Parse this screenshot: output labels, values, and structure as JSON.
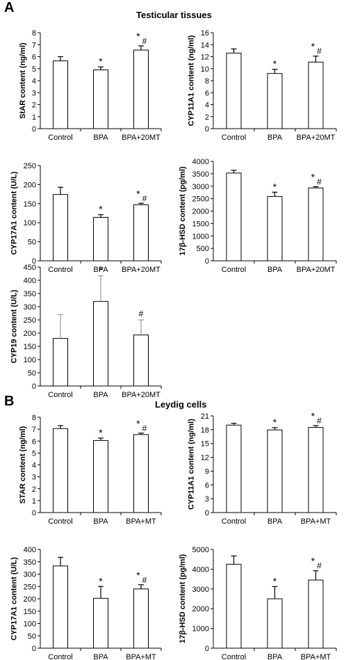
{
  "figure": {
    "panel_a_letter": "A",
    "panel_b_letter": "B",
    "panel_a_title": "Testicular tissues",
    "panel_b_title": "Leydig cells"
  },
  "chart_data": [
    {
      "type": "bar",
      "panel": "A",
      "categories": [
        "Control",
        "BPA",
        "BPA+20MT"
      ],
      "values": [
        5.65,
        4.9,
        6.55
      ],
      "errors": [
        0.35,
        0.25,
        0.35
      ],
      "annotations": [
        [],
        [
          "*"
        ],
        [
          "*",
          "#"
        ]
      ],
      "ylabel": "StAR content (ng/ml)",
      "ylim": [
        0,
        8
      ],
      "yticks": [
        0,
        1,
        2,
        3,
        4,
        5,
        6,
        7,
        8
      ],
      "error_style": "solid"
    },
    {
      "type": "bar",
      "panel": "A",
      "categories": [
        "Control",
        "BPA",
        "BPA+20MT"
      ],
      "values": [
        12.6,
        9.2,
        11.1
      ],
      "errors": [
        0.7,
        0.7,
        1.0
      ],
      "annotations": [
        [],
        [
          "*"
        ],
        [
          "*",
          "#"
        ]
      ],
      "ylabel": "CYP11A1 content (ng/ml)",
      "ylim": [
        0,
        16
      ],
      "yticks": [
        0,
        2,
        4,
        6,
        8,
        10,
        12,
        14,
        16
      ],
      "error_style": "solid"
    },
    {
      "type": "bar",
      "panel": "A",
      "categories": [
        "Control",
        "BPA",
        "BPA+20MT"
      ],
      "values": [
        174,
        114,
        147
      ],
      "errors": [
        19,
        7,
        4
      ],
      "annotations": [
        [],
        [
          "*"
        ],
        [
          "*",
          "#"
        ]
      ],
      "ylabel": "CYP17A1 content (U/L)",
      "ylim": [
        0,
        250
      ],
      "yticks": [
        0,
        50,
        100,
        150,
        200,
        250
      ],
      "error_style": "solid"
    },
    {
      "type": "bar",
      "panel": "A",
      "categories": [
        "Control",
        "BPA",
        "BPA+20MT"
      ],
      "values": [
        3530,
        2590,
        2930
      ],
      "errors": [
        110,
        170,
        50
      ],
      "annotations": [
        [],
        [
          "*"
        ],
        [
          "*",
          "#"
        ]
      ],
      "ylabel": "17β-HSD content (pg/ml)",
      "ylim": [
        0,
        4000
      ],
      "yticks": [
        0,
        500,
        1000,
        1500,
        2000,
        2500,
        3000,
        3500,
        4000
      ],
      "error_style": "solid"
    },
    {
      "type": "bar",
      "panel": "A",
      "categories": [
        "Control",
        "BPA",
        "BPA+20MT"
      ],
      "values": [
        180,
        320,
        193
      ],
      "errors": [
        90,
        97,
        57
      ],
      "annotations": [
        [],
        [
          "*"
        ],
        [
          "#"
        ]
      ],
      "ylabel": "CYP19 content (U/L)",
      "ylim": [
        0,
        450
      ],
      "yticks": [
        0,
        50,
        100,
        150,
        200,
        250,
        300,
        350,
        400,
        450
      ],
      "error_style": "light"
    },
    {
      "type": "bar",
      "panel": "B",
      "categories": [
        "Control",
        "BPA",
        "BPA+MT"
      ],
      "values": [
        7.05,
        6.05,
        6.55
      ],
      "errors": [
        0.25,
        0.2,
        0.12
      ],
      "annotations": [
        [],
        [
          "*"
        ],
        [
          "*",
          "#"
        ]
      ],
      "ylabel": "STAR content (ng/ml)",
      "ylim": [
        0,
        8
      ],
      "yticks": [
        0,
        1,
        2,
        3,
        4,
        5,
        6,
        7,
        8
      ],
      "error_style": "solid"
    },
    {
      "type": "bar",
      "panel": "B",
      "categories": [
        "Control",
        "BPA",
        "BPA+MT"
      ],
      "values": [
        19.0,
        17.95,
        18.5
      ],
      "errors": [
        0.4,
        0.5,
        0.4
      ],
      "annotations": [
        [],
        [
          "*"
        ],
        [
          "*",
          "#"
        ]
      ],
      "ylabel": "CYP11A1 content (ng/ml)",
      "ylim": [
        0,
        21
      ],
      "yticks": [
        0,
        3,
        6,
        9,
        12,
        15,
        18,
        21
      ],
      "error_style": "solid"
    },
    {
      "type": "bar",
      "panel": "B",
      "categories": [
        "Control",
        "BPA",
        "BPA+MT"
      ],
      "values": [
        333,
        202,
        240
      ],
      "errors": [
        35,
        48,
        17
      ],
      "annotations": [
        [],
        [
          "*"
        ],
        [
          "*",
          "#"
        ]
      ],
      "ylabel": "CYP17A1 content (U/L)",
      "ylim": [
        0,
        400
      ],
      "yticks": [
        0,
        50,
        100,
        150,
        200,
        250,
        300,
        350,
        400
      ],
      "error_style": "solid"
    },
    {
      "type": "bar",
      "panel": "B",
      "categories": [
        "Control",
        "BPA",
        "BPA+MT"
      ],
      "values": [
        4250,
        2500,
        3450
      ],
      "errors": [
        420,
        620,
        470
      ],
      "annotations": [
        [],
        [
          "*"
        ],
        [
          "*",
          "#"
        ]
      ],
      "ylabel": "17β-HSD content (pg/ml)",
      "ylim": [
        0,
        5000
      ],
      "yticks": [
        0,
        1000,
        2000,
        3000,
        4000,
        5000
      ],
      "error_style": "solid"
    }
  ]
}
